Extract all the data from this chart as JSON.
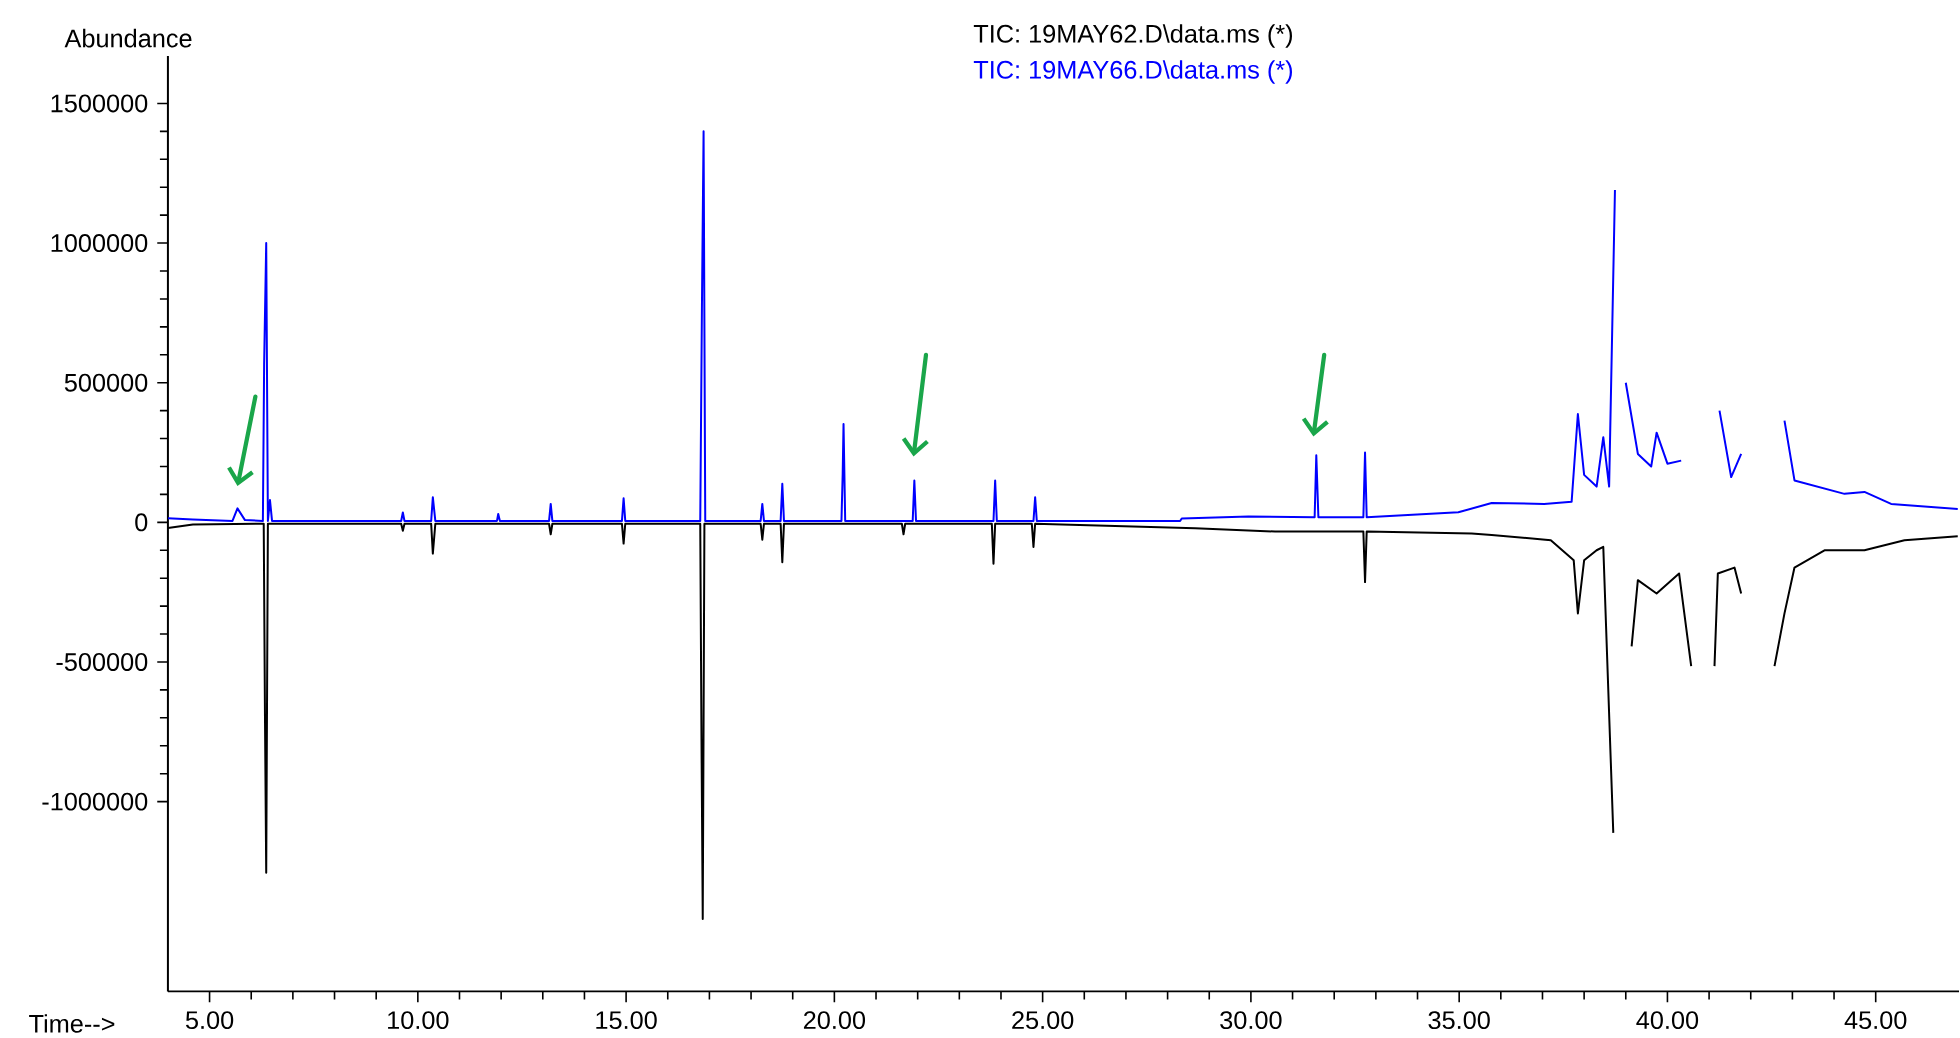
{
  "chart_data": {
    "type": "line",
    "xlabel": "Time-->",
    "ylabel": "Abundance",
    "legend": "top",
    "xlim": [
      4.0,
      47.0
    ],
    "ylim": [
      -1680000,
      1670000
    ],
    "xticks": [
      {
        "value": 5,
        "label": "5.00"
      },
      {
        "value": 10,
        "label": "10.00"
      },
      {
        "value": 15,
        "label": "15.00"
      },
      {
        "value": 20,
        "label": "20.00"
      },
      {
        "value": 25,
        "label": "25.00"
      },
      {
        "value": 30,
        "label": "30.00"
      },
      {
        "value": 35,
        "label": "35.00"
      },
      {
        "value": 40,
        "label": "40.00"
      },
      {
        "value": 45,
        "label": "45.00"
      }
    ],
    "yticks": [
      -1000000,
      -500000,
      0,
      500000,
      1000000,
      1500000
    ],
    "series": [
      {
        "name": "TIC: 19MAY62.D\\data.ms (*)",
        "color": "#000000",
        "x": [
          4.0,
          4.6,
          6.3,
          6.33,
          6.36,
          6.4,
          9.6,
          9.64,
          9.68,
          10.32,
          10.36,
          10.42,
          13.15,
          13.19,
          13.23,
          14.9,
          14.94,
          14.98,
          16.78,
          16.81,
          16.84,
          16.88,
          18.23,
          18.27,
          18.31,
          18.71,
          18.75,
          18.79,
          21.62,
          21.66,
          21.7,
          23.78,
          23.82,
          23.86,
          24.74,
          24.78,
          24.82,
          28.66,
          30.58,
          32.7,
          32.74,
          32.78,
          35.3,
          35.78,
          37.2,
          37.75,
          37.85,
          38.0,
          38.3,
          38.46,
          38.7,
          38.78,
          38.85,
          39.14,
          39.29,
          39.74,
          40.28,
          40.57,
          40.65,
          40.93,
          41.13,
          41.21,
          41.61,
          41.77,
          41.93,
          42.37,
          42.57,
          42.81,
          43.05,
          43.77,
          44.73,
          45.69,
          46.97
        ],
        "values": [
          -20000,
          -8000,
          -5000,
          -695000,
          -1255000,
          -5000,
          -5000,
          -30000,
          -5000,
          -5000,
          -112000,
          -5000,
          -5000,
          -43000,
          -5000,
          -5000,
          -76000,
          -5000,
          -5000,
          -779000,
          -1420000,
          -5000,
          -5000,
          -62000,
          -5000,
          -5000,
          -143000,
          -5000,
          -5000,
          -43000,
          -5000,
          -5000,
          -148000,
          -5000,
          -5000,
          -88000,
          -5000,
          -21000,
          -33000,
          -33000,
          -214000,
          -33000,
          -40000,
          -45000,
          -64000,
          -136000,
          -326000,
          -136000,
          -100000,
          -88000,
          -1112000,
          null,
          null,
          -444000,
          -207000,
          -255000,
          -183000,
          -515000,
          null,
          null,
          -515000,
          -183000,
          -162000,
          -255000,
          null,
          null,
          -515000,
          -326000,
          -162000,
          -100000,
          -100000,
          -64000,
          -50000
        ]
      },
      {
        "name": "TIC: 19MAY66.D\\data.ms (*)",
        "color": "#0000ff",
        "x": [
          4.0,
          4.6,
          5.55,
          5.67,
          5.85,
          6.28,
          6.31,
          6.36,
          6.4,
          6.45,
          6.5,
          9.6,
          9.64,
          9.68,
          10.32,
          10.36,
          10.42,
          11.9,
          11.93,
          11.97,
          13.15,
          13.19,
          13.23,
          14.9,
          14.94,
          14.98,
          16.78,
          16.82,
          16.86,
          16.9,
          18.23,
          18.27,
          18.31,
          18.71,
          18.75,
          18.79,
          20.17,
          20.2,
          20.22,
          20.26,
          21.88,
          21.92,
          21.96,
          23.82,
          23.86,
          23.9,
          24.78,
          24.82,
          24.86,
          28.3,
          28.34,
          29.94,
          31.53,
          31.57,
          31.62,
          32.7,
          32.74,
          32.78,
          34.98,
          35.78,
          37.04,
          37.7,
          37.85,
          38.0,
          38.3,
          38.46,
          38.6,
          38.74,
          38.78,
          38.85,
          39.0,
          39.29,
          39.61,
          39.74,
          40.0,
          40.33,
          40.65,
          40.97,
          41.25,
          41.53,
          41.77,
          41.93,
          42.41,
          42.81,
          43.05,
          44.25,
          44.73,
          45.37,
          46.97
        ],
        "values": [
          15000,
          10000,
          5000,
          50000,
          8000,
          5000,
          570000,
          1000000,
          5000,
          80000,
          5000,
          5000,
          35000,
          5000,
          5000,
          90000,
          5000,
          5000,
          30000,
          5000,
          5000,
          66000,
          5000,
          5000,
          86000,
          5000,
          5000,
          764000,
          1400000,
          5000,
          5000,
          66000,
          5000,
          5000,
          138000,
          5000,
          5000,
          174000,
          352000,
          5000,
          5000,
          150000,
          5000,
          5000,
          150000,
          5000,
          5000,
          90000,
          5000,
          5000,
          14000,
          21000,
          18000,
          240000,
          18000,
          18000,
          250000,
          18000,
          36000,
          69000,
          66000,
          74000,
          388000,
          170000,
          128000,
          305000,
          128000,
          1190000,
          null,
          null,
          500000,
          245000,
          200000,
          321000,
          210000,
          221000,
          null,
          null,
          400000,
          162000,
          245000,
          null,
          null,
          364000,
          150000,
          102000,
          109000,
          66000,
          48000
        ]
      }
    ]
  }
}
